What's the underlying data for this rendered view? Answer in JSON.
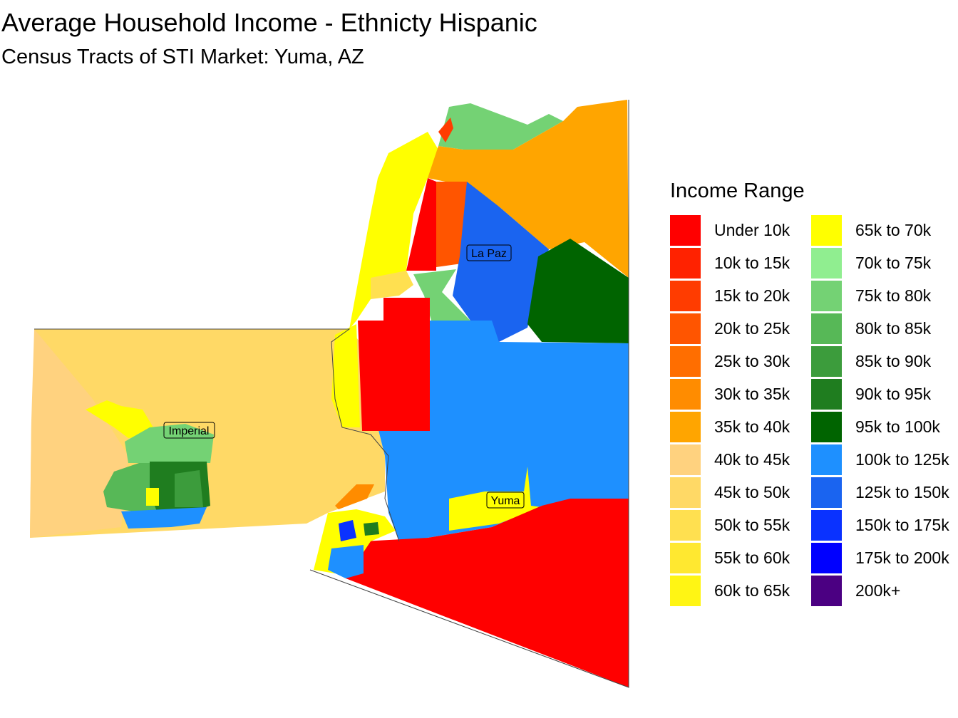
{
  "title": "Average Household Income - Ethnicty Hispanic",
  "subtitle": "Census Tracts of STI Market: Yuma, AZ",
  "legend": {
    "title": "Income Range",
    "items": [
      {
        "label": "Under 10k",
        "color": "#ff0000"
      },
      {
        "label": "10k to 15k",
        "color": "#ff2200"
      },
      {
        "label": "15k to 20k",
        "color": "#ff3c00"
      },
      {
        "label": "20k to 25k",
        "color": "#ff5500"
      },
      {
        "label": "25k to 30k",
        "color": "#ff6e00"
      },
      {
        "label": "30k to 35k",
        "color": "#ff8c00"
      },
      {
        "label": "35k to 40k",
        "color": "#ffa500"
      },
      {
        "label": "40k to 45k",
        "color": "#ffd27f"
      },
      {
        "label": "45k to 50k",
        "color": "#ffd966"
      },
      {
        "label": "50k to 55k",
        "color": "#ffe050"
      },
      {
        "label": "55k to 60k",
        "color": "#ffe830"
      },
      {
        "label": "60k to 65k",
        "color": "#fff514"
      },
      {
        "label": "65k to 70k",
        "color": "#ffff00"
      },
      {
        "label": "70k to 75k",
        "color": "#90ee90"
      },
      {
        "label": "75k to 80k",
        "color": "#74d274"
      },
      {
        "label": "80k to 85k",
        "color": "#57b857"
      },
      {
        "label": "85k to 90k",
        "color": "#3c9c3c"
      },
      {
        "label": "90k to 95k",
        "color": "#1f7d1f"
      },
      {
        "label": "95k to 100k",
        "color": "#006400"
      },
      {
        "label": "100k to 125k",
        "color": "#1e90ff"
      },
      {
        "label": "125k to 150k",
        "color": "#1a64f0"
      },
      {
        "label": "150k to 175k",
        "color": "#0a32ff"
      },
      {
        "label": "175k to 200k",
        "color": "#0000ff"
      },
      {
        "label": "200k+",
        "color": "#4b0082"
      }
    ]
  },
  "places": [
    {
      "name": "La Paz"
    },
    {
      "name": "Imperial"
    },
    {
      "name": "Yuma"
    }
  ]
}
